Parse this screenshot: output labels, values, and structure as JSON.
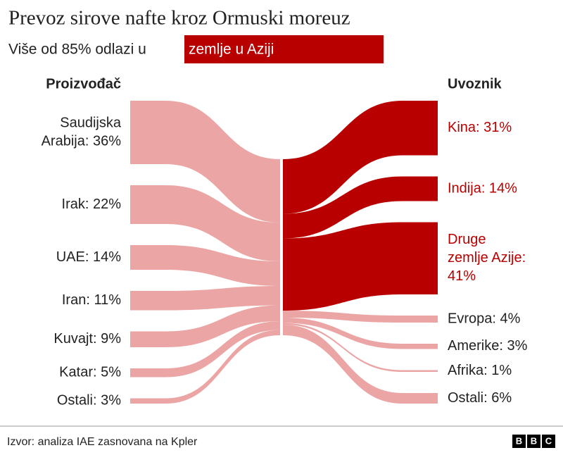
{
  "chart_data": {
    "type": "sankey",
    "title": "Prevoz sirove nafte kroz Ormuski moreuz",
    "subtitle": "Više od 85% odlazi u",
    "subtitle_highlight": "zemlje u Aziji",
    "source_header": "Proizvođač",
    "target_header": "Uvoznik",
    "sources": [
      {
        "label": [
          "Saudijska",
          "Arabija: 36%"
        ],
        "value": 36,
        "color": "#eba5a5"
      },
      {
        "label": [
          "Irak: 22%"
        ],
        "value": 22,
        "color": "#eba5a5"
      },
      {
        "label": [
          "UAE: 14%"
        ],
        "value": 14,
        "color": "#eba5a5"
      },
      {
        "label": [
          "Iran: 11%"
        ],
        "value": 11,
        "color": "#eba5a5"
      },
      {
        "label": [
          "Kuvajt: 9%"
        ],
        "value": 9,
        "color": "#eba5a5"
      },
      {
        "label": [
          "Katar: 5%"
        ],
        "value": 5,
        "color": "#eba5a5"
      },
      {
        "label": [
          "Ostali: 3%"
        ],
        "value": 3,
        "color": "#eba5a5"
      }
    ],
    "targets": [
      {
        "label": [
          "Kina: 31%"
        ],
        "value": 31,
        "color": "#b80000",
        "label_color": "#b80000"
      },
      {
        "label": [
          "Indija: 14%"
        ],
        "value": 14,
        "color": "#b80000",
        "label_color": "#b80000"
      },
      {
        "label": [
          "Druge",
          "zemlje Azije:",
          "41%"
        ],
        "value": 41,
        "color": "#b80000",
        "label_color": "#b80000"
      },
      {
        "label": [
          "Evropa: 4%"
        ],
        "value": 4,
        "color": "#eba5a5",
        "label_color": "#222222"
      },
      {
        "label": [
          "Amerike: 3%"
        ],
        "value": 3,
        "color": "#eba5a5",
        "label_color": "#222222"
      },
      {
        "label": [
          "Afrika: 1%"
        ],
        "value": 1,
        "color": "#eba5a5",
        "label_color": "#222222"
      },
      {
        "label": [
          "Ostali: 6%"
        ],
        "value": 6,
        "color": "#eba5a5",
        "label_color": "#222222"
      }
    ],
    "source_note": "Izvor: analiza IAE zasnovana na Kpler",
    "logo": [
      "B",
      "B",
      "C"
    ]
  }
}
